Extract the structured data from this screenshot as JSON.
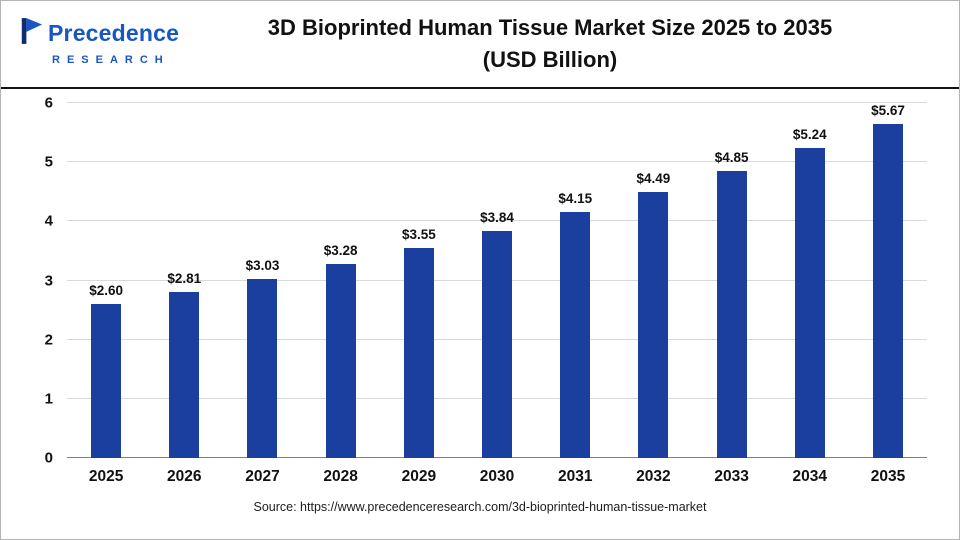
{
  "logo": {
    "name": "Precedence",
    "subname": "RESEARCH",
    "colors": {
      "primary": "#1857c3",
      "dark": "#0d2d6e"
    }
  },
  "header": {
    "title_line1": "3D Bioprinted Human Tissue Market Size 2025 to 2035",
    "title_line2": "(USD Billion)"
  },
  "source": "Source: https://www.precedenceresearch.com/3d-bioprinted-human-tissue-market",
  "chart_data": {
    "type": "bar",
    "title": "3D Bioprinted Human Tissue Market Size 2025 to 2035 (USD Billion)",
    "categories": [
      "2025",
      "2026",
      "2027",
      "2028",
      "2029",
      "2030",
      "2031",
      "2032",
      "2033",
      "2034",
      "2035"
    ],
    "values": [
      2.6,
      2.81,
      3.03,
      3.28,
      3.55,
      3.84,
      4.15,
      4.49,
      4.85,
      5.24,
      5.67
    ],
    "labels": [
      "$2.60",
      "$2.81",
      "$3.03",
      "$3.28",
      "$3.55",
      "$3.84",
      "$4.15",
      "$4.49",
      "$4.85",
      "$5.24",
      "$5.67"
    ],
    "xlabel": "",
    "ylabel": "",
    "ylim": [
      0,
      6
    ],
    "yticks": [
      0,
      1,
      2,
      3,
      4,
      5,
      6
    ],
    "grid": true,
    "legend_position": "none",
    "bar_color": "#1b3f9f"
  }
}
